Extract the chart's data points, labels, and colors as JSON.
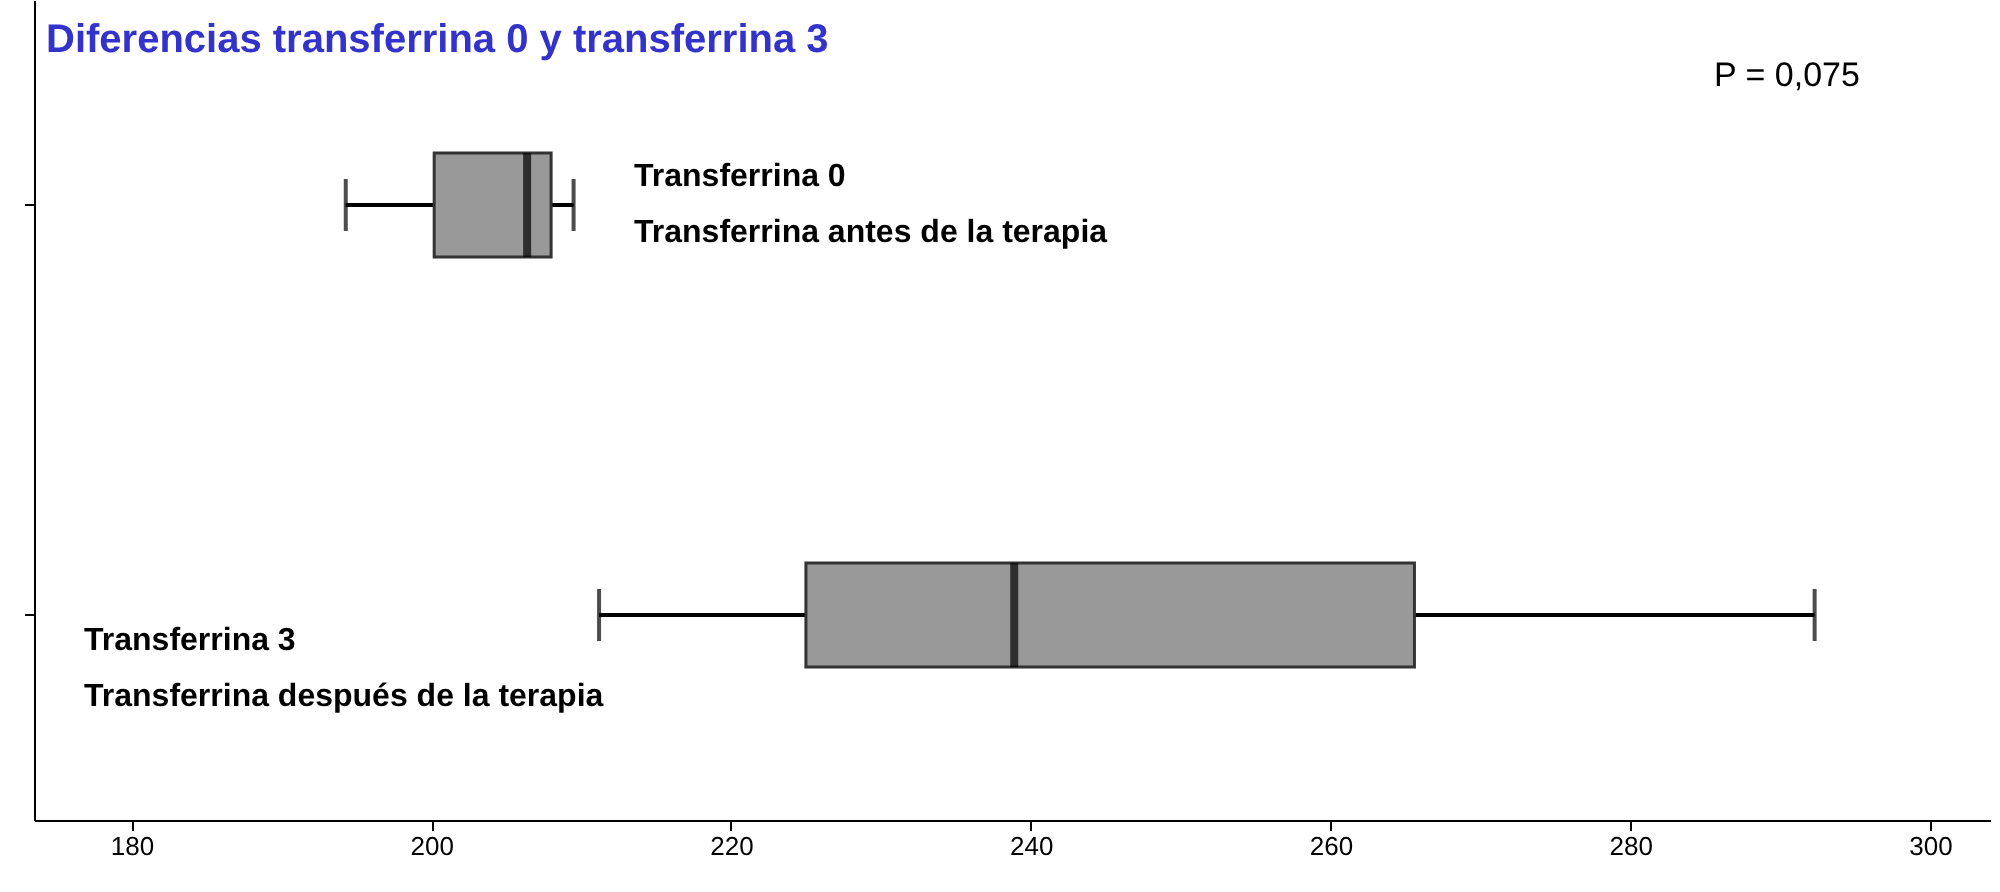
{
  "chart_data": {
    "type": "box",
    "title": "Diferencias transferrina 0 y transferrina 3",
    "orientation": "horizontal",
    "categories": [
      null,
      null
    ],
    "series": [
      {
        "color": "#999999",
        "boxes": [
          {
            "low": 194.3,
            "q1": 200.2,
            "median": 206.4,
            "q3": 208.0,
            "high": 209.5
          },
          {
            "low": 211.2,
            "q1": 225.0,
            "median": 238.9,
            "q3": 265.6,
            "high": 292.3
          }
        ]
      }
    ],
    "xlim": [
      173.5,
      304
    ],
    "xticks": [
      180,
      200,
      220,
      240,
      260,
      280,
      300
    ],
    "tick_labels": "x",
    "grid": false,
    "annotations": [
      "P = 0,075",
      "Transferrina 0",
      "Transferrina antes de la terapia",
      "Transferrina 3",
      "Transferrina después de la terapia"
    ]
  }
}
